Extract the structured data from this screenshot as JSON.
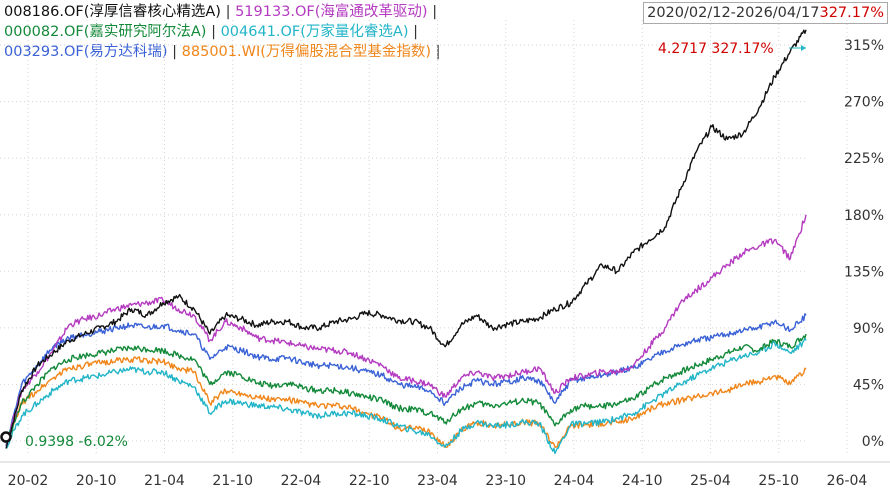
{
  "header": {
    "date_range": "2020/02/12-2026/04/17",
    "range_return": "327.17%"
  },
  "legend": {
    "rows": [
      [
        {
          "label": "008186.OF(淳厚信睿核心精选A)",
          "color": "#111111"
        },
        {
          "label": "519133.OF(海富通改革驱动)",
          "color": "#b43bc0"
        }
      ],
      [
        {
          "label": "000082.OF(嘉实研究阿尔法A)",
          "color": "#13893a"
        },
        {
          "label": "004641.OF(万家量化睿选A)",
          "color": "#22b5c8"
        }
      ],
      [
        {
          "label": "003293.OF(易方达科瑞)",
          "color": "#3a62d6"
        },
        {
          "label": "885001.WI(万得偏股混合型基金指数)",
          "color": "#f0861a"
        }
      ]
    ],
    "separator": "|"
  },
  "annotations": {
    "end_label": "4.2717 327.17%",
    "start_label": "0.9398 -6.02%"
  },
  "chart_data": {
    "type": "line",
    "x_start": "2020-02",
    "x_end": "2026-04",
    "x_tick_labels": [
      "20-02",
      "20-10",
      "21-04",
      "21-10",
      "22-04",
      "22-10",
      "23-04",
      "23-10",
      "24-04",
      "24-10",
      "25-04",
      "25-10",
      "26-04"
    ],
    "y_tick_labels": [
      "0%",
      "45%",
      "90%",
      "135%",
      "180%",
      "225%",
      "270%",
      "315%"
    ],
    "y_ticks": [
      0,
      45,
      90,
      135,
      180,
      225,
      270,
      315
    ],
    "ylim": [
      -12,
      335
    ],
    "y_unit": "%",
    "grid": true,
    "series": [
      {
        "name": "008186.OF(淳厚信睿核心精选A)",
        "color": "#111111",
        "values": [
          -6,
          40,
          60,
          70,
          80,
          85,
          90,
          95,
          105,
          100,
          110,
          115,
          105,
          85,
          100,
          97,
          92,
          95,
          95,
          90,
          90,
          95,
          97,
          102,
          100,
          96,
          95,
          90,
          75,
          92,
          100,
          90,
          93,
          95,
          98,
          105,
          110,
          125,
          140,
          135,
          150,
          160,
          170,
          200,
          230,
          250,
          240,
          245,
          265,
          290,
          310,
          327.2
        ]
      },
      {
        "name": "519133.OF(海富通改革驱动)",
        "color": "#b43bc0",
        "values": [
          -3,
          40,
          55,
          72,
          92,
          97,
          100,
          105,
          108,
          110,
          112,
          105,
          100,
          80,
          95,
          90,
          82,
          80,
          78,
          75,
          73,
          72,
          70,
          65,
          60,
          50,
          48,
          45,
          35,
          50,
          55,
          50,
          52,
          55,
          58,
          38,
          50,
          52,
          55,
          55,
          60,
          75,
          90,
          110,
          120,
          130,
          140,
          150,
          155,
          160,
          145,
          180
        ]
      },
      {
        "name": "000082.OF(嘉实研究阿尔法A)",
        "color": "#13893a",
        "values": [
          -2,
          30,
          45,
          58,
          65,
          68,
          70,
          72,
          74,
          73,
          72,
          68,
          65,
          45,
          55,
          52,
          46,
          44,
          46,
          42,
          40,
          40,
          38,
          35,
          32,
          26,
          25,
          22,
          15,
          25,
          30,
          28,
          30,
          32,
          30,
          12,
          25,
          28,
          27,
          30,
          33,
          42,
          50,
          55,
          60,
          65,
          70,
          75,
          72,
          80,
          75,
          85
        ]
      },
      {
        "name": "004641.OF(万家量化睿选A)",
        "color": "#22b5c8",
        "values": [
          -5,
          20,
          30,
          40,
          48,
          50,
          52,
          55,
          57,
          55,
          55,
          48,
          43,
          22,
          32,
          30,
          28,
          27,
          25,
          22,
          20,
          22,
          22,
          20,
          17,
          12,
          8,
          5,
          -5,
          8,
          15,
          12,
          13,
          15,
          14,
          -10,
          13,
          14,
          15,
          18,
          22,
          30,
          38,
          45,
          52,
          58,
          63,
          68,
          70,
          78,
          70,
          80
        ]
      },
      {
        "name": "003293.OF(易方达科瑞)",
        "color": "#3a62d6",
        "values": [
          -4,
          45,
          60,
          75,
          82,
          85,
          87,
          90,
          92,
          90,
          92,
          88,
          85,
          65,
          75,
          72,
          67,
          65,
          66,
          62,
          60,
          60,
          58,
          55,
          52,
          45,
          43,
          40,
          30,
          42,
          48,
          45,
          47,
          50,
          48,
          30,
          48,
          50,
          52,
          55,
          58,
          65,
          72,
          76,
          80,
          82,
          85,
          88,
          90,
          95,
          88,
          100
        ]
      },
      {
        "name": "885001.WI(万得偏股混合型基金指数)",
        "color": "#f0861a",
        "values": [
          -3,
          30,
          40,
          50,
          58,
          60,
          62,
          64,
          65,
          64,
          63,
          58,
          55,
          30,
          40,
          38,
          35,
          33,
          33,
          30,
          28,
          28,
          26,
          22,
          18,
          10,
          10,
          8,
          -5,
          8,
          15,
          12,
          13,
          15,
          14,
          -5,
          12,
          13,
          14,
          15,
          18,
          25,
          30,
          32,
          35,
          38,
          40,
          45,
          47,
          52,
          45,
          57
        ]
      }
    ]
  }
}
